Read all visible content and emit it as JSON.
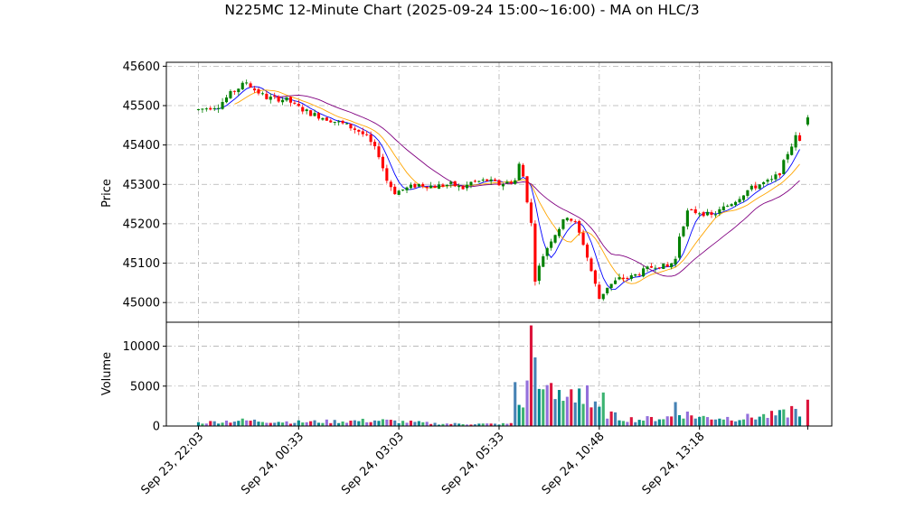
{
  "chart_data": {
    "type": "candlestick",
    "title": "N225MC 12-Minute Chart (2025-09-24 15:00~16:00) - MA on HLC/3",
    "price_panel": {
      "ylabel": "Price",
      "ylim": [
        44950,
        45610
      ],
      "yticks": [
        "45000",
        "45100",
        "45200",
        "45300",
        "45400",
        "45500",
        "45600"
      ],
      "grid": true
    },
    "volume_panel": {
      "ylabel": "Volume",
      "ylim": [
        0,
        13000
      ],
      "yticks": [
        "0",
        "5000",
        "10000"
      ],
      "grid": true
    },
    "x_tick_labels": [
      "Sep 23, 22:03",
      "Sep 24, 00:33",
      "Sep 24, 03:03",
      "Sep 24, 05:33",
      "Sep 24, 10:48",
      "Sep 24, 13:18"
    ],
    "x_tick_positions": [
      0,
      25,
      50,
      75,
      100,
      125
    ],
    "x_range": [
      -8,
      158
    ],
    "total_bars": 151,
    "price_path": [
      [
        0,
        45490
      ],
      [
        5,
        45500
      ],
      [
        8,
        45530
      ],
      [
        12,
        45560
      ],
      [
        14,
        45540
      ],
      [
        17,
        45520
      ],
      [
        22,
        45515
      ],
      [
        25,
        45495
      ],
      [
        28,
        45480
      ],
      [
        31,
        45470
      ],
      [
        34,
        45460
      ],
      [
        37,
        45450
      ],
      [
        40,
        45435
      ],
      [
        42,
        45420
      ],
      [
        45,
        45375
      ],
      [
        47,
        45310
      ],
      [
        49,
        45280
      ],
      [
        52,
        45290
      ],
      [
        55,
        45300
      ],
      [
        59,
        45295
      ],
      [
        63,
        45300
      ],
      [
        66,
        45290
      ],
      [
        68,
        45305
      ],
      [
        72,
        45310
      ],
      [
        75,
        45300
      ],
      [
        79,
        45310
      ],
      [
        80,
        45350
      ],
      [
        81,
        45320
      ],
      [
        83,
        45200
      ],
      [
        84,
        45060
      ],
      [
        86,
        45120
      ],
      [
        88,
        45160
      ],
      [
        90,
        45190
      ],
      [
        92,
        45220
      ],
      [
        94,
        45200
      ],
      [
        96,
        45150
      ],
      [
        98,
        45080
      ],
      [
        100,
        45010
      ],
      [
        102,
        45040
      ],
      [
        105,
        45060
      ],
      [
        108,
        45065
      ],
      [
        111,
        45080
      ],
      [
        114,
        45095
      ],
      [
        117,
        45090
      ],
      [
        119,
        45110
      ],
      [
        120,
        45170
      ],
      [
        122,
        45230
      ],
      [
        125,
        45230
      ],
      [
        128,
        45220
      ],
      [
        131,
        45240
      ],
      [
        134,
        45260
      ],
      [
        137,
        45285
      ],
      [
        140,
        45300
      ],
      [
        143,
        45310
      ],
      [
        145,
        45330
      ],
      [
        147,
        45380
      ],
      [
        149,
        45420
      ],
      [
        151,
        45400
      ],
      [
        152,
        45470
      ]
    ],
    "volume_path": [
      [
        0,
        400
      ],
      [
        10,
        700
      ],
      [
        25,
        500
      ],
      [
        45,
        700
      ],
      [
        60,
        300
      ],
      [
        74,
        250
      ],
      [
        79,
        300
      ],
      [
        80,
        2500
      ],
      [
        82,
        4000
      ],
      [
        83,
        9000
      ],
      [
        85,
        4500
      ],
      [
        90,
        3500
      ],
      [
        95,
        3000
      ],
      [
        100,
        2000
      ],
      [
        105,
        1000
      ],
      [
        110,
        800
      ],
      [
        115,
        1000
      ],
      [
        119,
        1200
      ],
      [
        120,
        1700
      ],
      [
        125,
        1100
      ],
      [
        135,
        1000
      ],
      [
        145,
        1400
      ],
      [
        152,
        2200
      ]
    ],
    "volume_spikes": [
      [
        83,
        12600
      ],
      [
        84,
        8600
      ],
      [
        82,
        5700
      ],
      [
        79,
        5500
      ],
      [
        86,
        4600
      ],
      [
        93,
        4600
      ],
      [
        95,
        4700
      ],
      [
        97,
        5100
      ],
      [
        101,
        4200
      ],
      [
        119,
        3000
      ],
      [
        148,
        2500
      ],
      [
        152,
        3300
      ]
    ],
    "series": [
      {
        "name": "",
        "period": 5,
        "color": "#0000ff"
      },
      {
        "name": "",
        "period": 10,
        "color": "#ffa500"
      },
      {
        "name": "",
        "period": 20,
        "color": "#800080"
      }
    ],
    "colors": {
      "up": "#008000",
      "down": "#ff0000",
      "grid": "#b0b0b0"
    }
  }
}
